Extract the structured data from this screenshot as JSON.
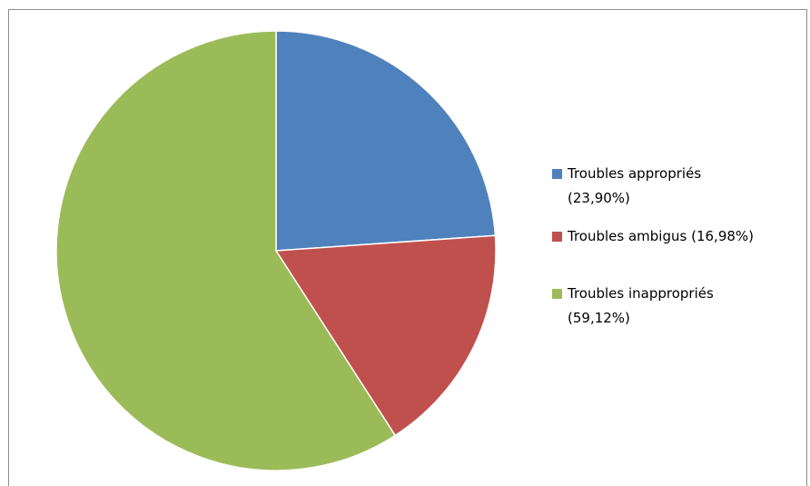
{
  "chart_data": {
    "type": "pie",
    "slices": [
      {
        "label": "Troubles appropriés",
        "value": 23.9,
        "display": "(23,90%)",
        "color": "#4F81BD"
      },
      {
        "label": "Troubles ambigus",
        "value": 16.98,
        "display": "(16,98%)",
        "color": "#C0504D"
      },
      {
        "label": "Troubles inappropriés",
        "value": 59.12,
        "display": "(59,12%)",
        "color": "#9BBB59"
      }
    ],
    "legend_position": "right",
    "start_angle": "top",
    "direction": "clockwise"
  }
}
